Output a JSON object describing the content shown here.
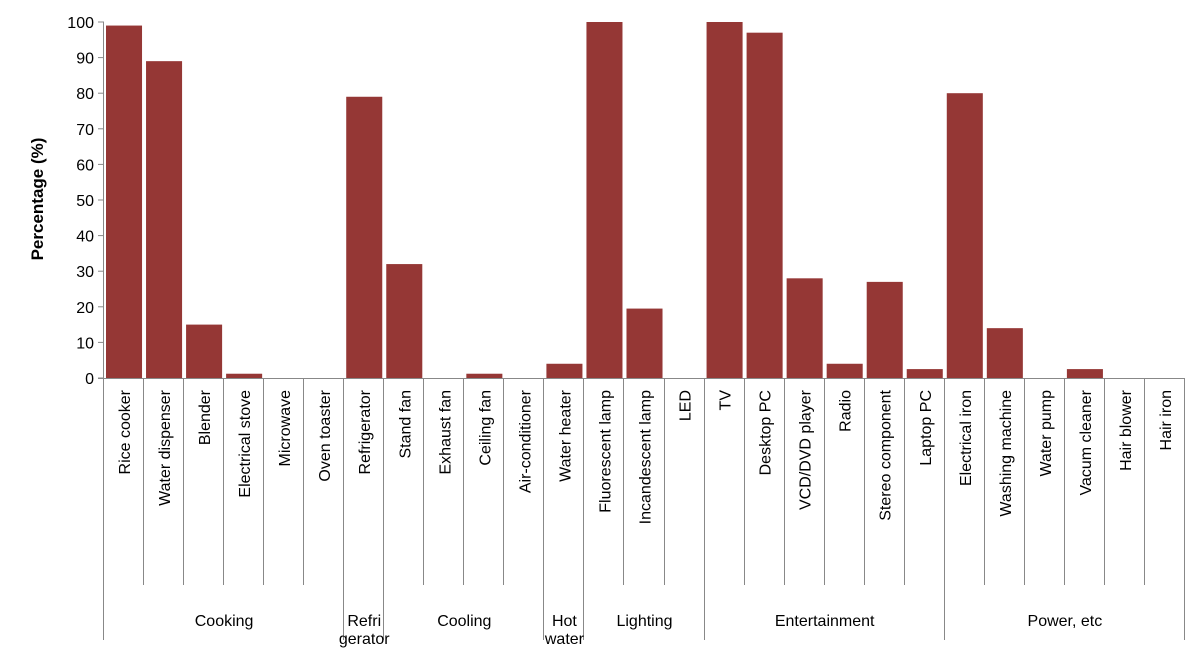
{
  "chart_data": {
    "type": "bar",
    "title": "",
    "xlabel": "",
    "ylabel": "Percentage  (%)",
    "ylim": [
      0,
      100
    ],
    "yticks": [
      0,
      10,
      20,
      30,
      40,
      50,
      60,
      70,
      80,
      90,
      100
    ],
    "grid": false,
    "legend": "none",
    "bar_color": "#953735",
    "categories": [
      "Rice cooker",
      "Water dispenser",
      "Blender",
      "Electrical stove",
      "Microwave",
      "Oven toaster",
      "Refrigerator",
      "Stand fan",
      "Exhaust fan",
      "Ceiling fan",
      "Air-conditioner",
      "Water heater",
      "Fluorescent lamp",
      "Incandescent lamp",
      "LED",
      "TV",
      "Desktop PC",
      "VCD/DVD player",
      "Radio",
      "Stereo component",
      "Laptop PC",
      "Electrical iron",
      "Washing machine",
      "Water pump",
      "Vacum cleaner",
      "Hair blower",
      "Hair iron"
    ],
    "values": [
      99,
      89,
      15,
      1.2,
      0,
      0,
      79,
      32,
      0,
      1.2,
      0,
      4,
      100,
      19.5,
      0,
      100,
      97,
      28,
      4,
      27,
      2.5,
      80,
      14,
      0,
      2.5,
      0,
      0
    ],
    "groups": [
      {
        "label": "Cooking",
        "span": 6
      },
      {
        "label": "Refri\ngerator",
        "span": 1
      },
      {
        "label": "Cooling",
        "span": 4
      },
      {
        "label": "Hot\nwater",
        "span": 1
      },
      {
        "label": "Lighting",
        "span": 3
      },
      {
        "label": "Entertainment",
        "span": 6
      },
      {
        "label": "Power, etc",
        "span": 6
      }
    ]
  }
}
